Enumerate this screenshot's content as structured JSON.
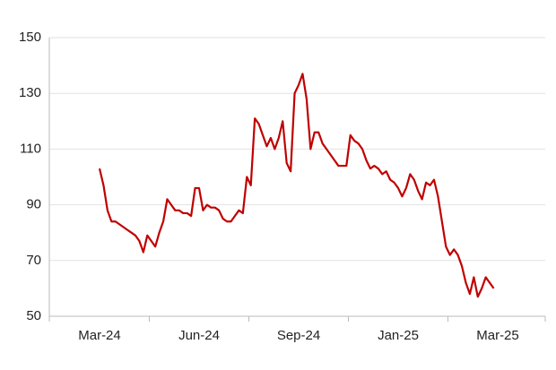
{
  "chart_data": {
    "type": "line",
    "categories": [
      "Mar-24",
      null,
      null,
      null,
      null,
      null,
      null,
      null,
      null,
      null,
      null,
      null,
      null,
      null,
      null,
      null,
      null,
      null,
      null,
      null,
      null,
      null,
      null,
      null,
      null,
      "Jun-24",
      null,
      null,
      null,
      null,
      null,
      null,
      null,
      null,
      null,
      null,
      null,
      null,
      null,
      null,
      null,
      null,
      null,
      null,
      null,
      null,
      null,
      null,
      null,
      null,
      "Sep-24",
      null,
      null,
      null,
      null,
      null,
      null,
      null,
      null,
      null,
      null,
      null,
      null,
      null,
      null,
      null,
      null,
      null,
      null,
      null,
      null,
      null,
      null,
      null,
      null,
      "Jan-25",
      null,
      null,
      null,
      null,
      null,
      null,
      null,
      null,
      null,
      null,
      null,
      null,
      null,
      null,
      null,
      null,
      null,
      null,
      null,
      null,
      null,
      null,
      null,
      null,
      "Mar-25"
    ],
    "series": [
      {
        "color": "#c00000",
        "values": [
          103,
          97,
          88,
          84,
          84,
          83,
          82,
          81,
          80,
          79,
          77,
          73,
          79,
          77,
          75,
          80,
          84,
          92,
          90,
          88,
          88,
          87,
          87,
          86,
          96,
          96,
          88,
          90,
          89,
          89,
          88,
          85,
          84,
          84,
          86,
          88,
          87,
          100,
          97,
          121,
          119,
          115,
          111,
          114,
          110,
          114,
          120,
          105,
          102,
          130,
          133,
          137,
          128,
          110,
          116,
          116,
          112,
          110,
          108,
          106,
          104,
          104,
          104,
          115,
          113,
          112,
          110,
          106,
          103,
          104,
          103,
          101,
          102,
          99,
          98,
          96,
          93,
          96,
          101,
          99,
          95,
          92,
          98,
          97,
          99,
          93,
          84,
          75,
          72,
          74,
          72,
          68,
          62,
          58,
          64,
          57,
          60,
          64,
          62,
          60,
          null
        ]
      }
    ],
    "ylim": [
      50,
      150
    ],
    "yticks": [
      50,
      70,
      90,
      110,
      130,
      150
    ],
    "grid": true
  }
}
